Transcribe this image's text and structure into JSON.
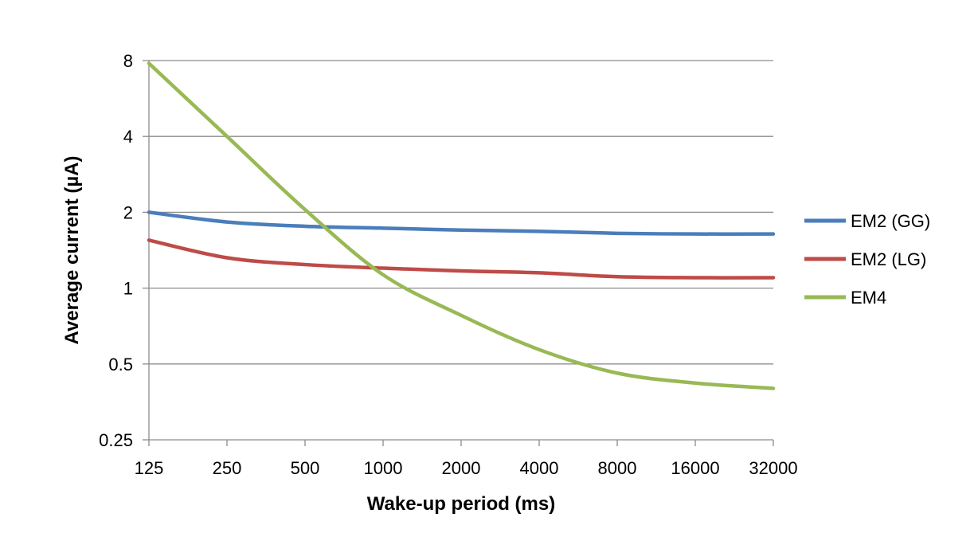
{
  "chart_data": {
    "type": "line",
    "title": "",
    "xlabel": "Wake-up period (ms)",
    "ylabel": "Average current (µA)",
    "x_scale": "log2",
    "y_scale": "log2",
    "categories": [
      "125",
      "250",
      "500",
      "1000",
      "2000",
      "4000",
      "8000",
      "16000",
      "32000"
    ],
    "x": [
      125,
      250,
      500,
      1000,
      2000,
      4000,
      8000,
      16000,
      32000
    ],
    "yticks": [
      "0.25",
      "0.5",
      "1",
      "2",
      "4",
      "8"
    ],
    "ylim": [
      0.25,
      8
    ],
    "grid": true,
    "legend": "right",
    "series": [
      {
        "name": "EM2 (GG)",
        "color": "#4a7ebb",
        "values": [
          2.0,
          1.83,
          1.76,
          1.73,
          1.7,
          1.68,
          1.65,
          1.64,
          1.64
        ]
      },
      {
        "name": "EM2 (LG)",
        "color": "#be4b48",
        "values": [
          1.55,
          1.32,
          1.24,
          1.2,
          1.17,
          1.15,
          1.11,
          1.1,
          1.1
        ]
      },
      {
        "name": "EM4",
        "color": "#98b954",
        "values": [
          7.8,
          4.0,
          2.05,
          1.13,
          0.78,
          0.57,
          0.46,
          0.42,
          0.4
        ]
      }
    ]
  }
}
